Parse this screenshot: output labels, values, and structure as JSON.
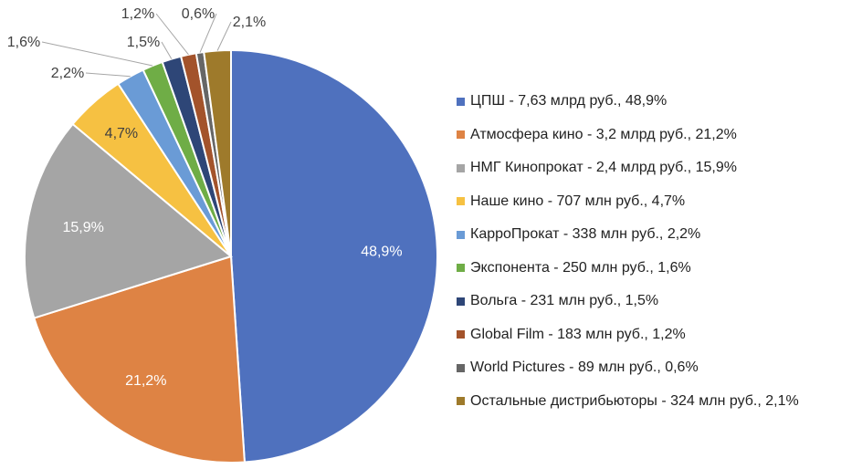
{
  "chart_data": {
    "type": "pie",
    "start_angle_deg": 0,
    "direction": "clockwise",
    "slices": [
      {
        "value": 48.9,
        "label": "48,9%",
        "legend": "ЦПШ - 7,63 млрд руб., 48,9%",
        "color": "#4F71BE",
        "label_style": "inside",
        "label_color": "#ffffff"
      },
      {
        "value": 21.2,
        "label": "21,2%",
        "legend": "Атмосфера кино - 3,2 млрд руб., 21,2%",
        "color": "#DE8344",
        "label_style": "inside",
        "label_color": "#ffffff"
      },
      {
        "value": 15.9,
        "label": "15,9%",
        "legend": "НМГ Кинопрокат - 2,4 млрд руб., 15,9%",
        "color": "#A5A5A5",
        "label_style": "inside",
        "label_color": "#ffffff"
      },
      {
        "value": 4.7,
        "label": "4,7%",
        "legend": "Наше кино - 707 млн руб., 4,7%",
        "color": "#F6C142",
        "label_style": "inside",
        "label_color": "#404040"
      },
      {
        "value": 2.2,
        "label": "2,2%",
        "legend": "КарроПрокат - 338 млн руб., 2,2%",
        "color": "#6A9BD6",
        "label_style": "outside",
        "label_color": "#404040"
      },
      {
        "value": 1.6,
        "label": "1,6%",
        "legend": "Экспонента - 250 млн руб., 1,6%",
        "color": "#6FAD46",
        "label_style": "outside",
        "label_color": "#404040"
      },
      {
        "value": 1.5,
        "label": "1,5%",
        "legend": "Вольга - 231 млн руб., 1,5%",
        "color": "#2E4677",
        "label_style": "outside",
        "label_color": "#404040"
      },
      {
        "value": 1.2,
        "label": "1,2%",
        "legend": "Global Film - 183 млн руб., 1,2%",
        "color": "#A3532B",
        "label_style": "outside",
        "label_color": "#404040"
      },
      {
        "value": 0.6,
        "label": "0,6%",
        "legend": "World Pictures - 89 млн руб., 0,6%",
        "color": "#666666",
        "label_style": "outside",
        "label_color": "#404040"
      },
      {
        "value": 2.1,
        "label": "2,1%",
        "legend": "Остальные дистрибьюторы - 324 млн руб., 2,1%",
        "color": "#9E7A2B",
        "label_style": "outside",
        "label_color": "#404040"
      }
    ],
    "legend_position": "right"
  }
}
